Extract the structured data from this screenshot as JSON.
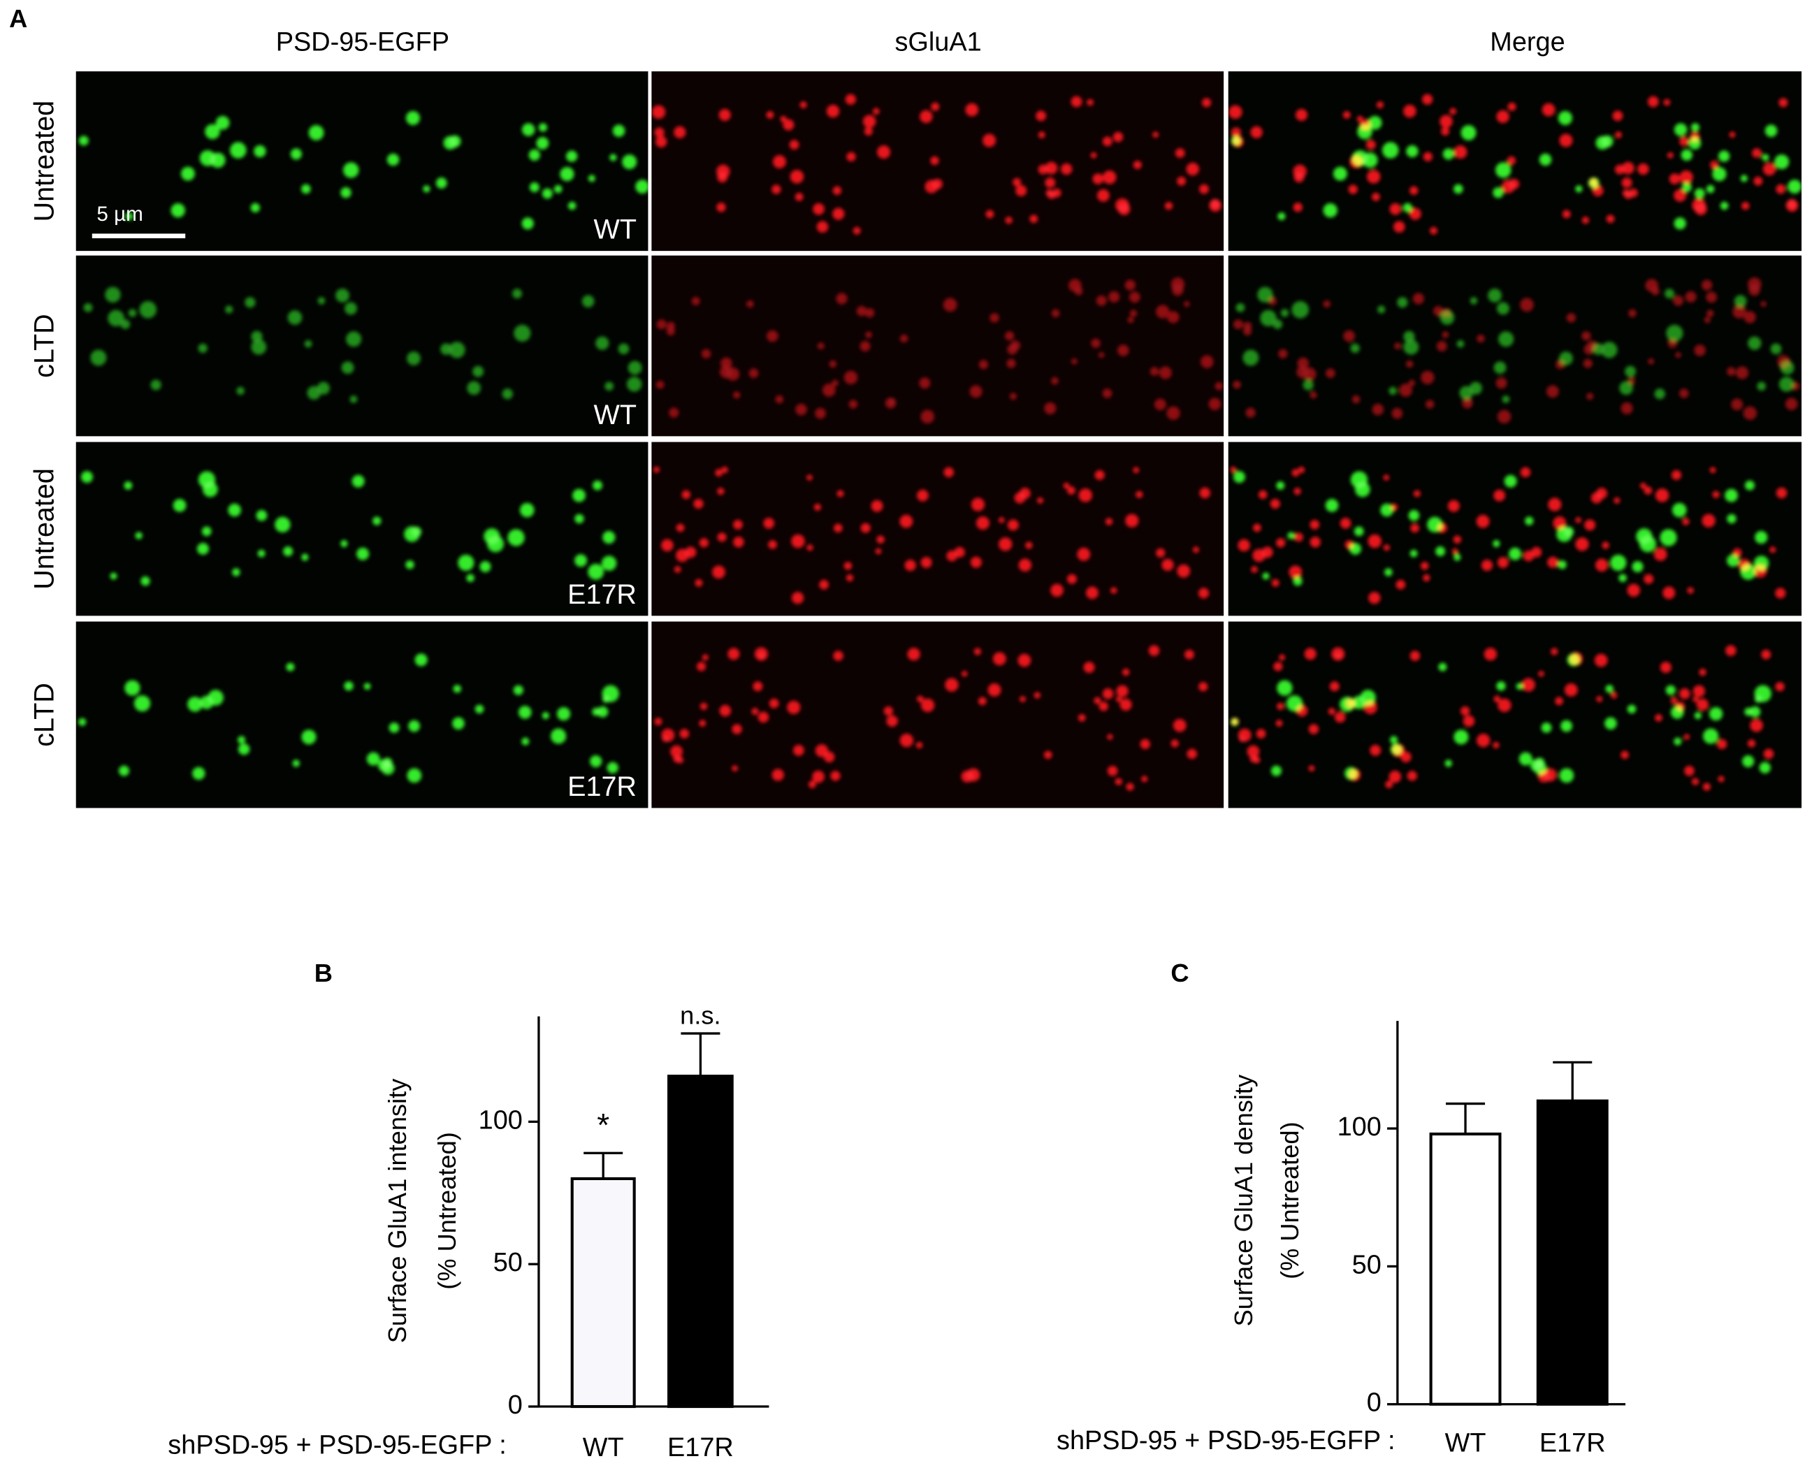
{
  "panel_a": {
    "label": "A",
    "columns": [
      "PSD-95-EGFP",
      "sGluA1",
      "Merge"
    ],
    "rows": [
      "Untreated",
      "cLTD",
      "Untreated",
      "cLTD"
    ],
    "conditions": [
      "WT",
      "WT",
      "E17R",
      "E17R"
    ],
    "scale_bar": "5 µm"
  },
  "chart_data": [
    {
      "type": "bar",
      "panel_label": "B",
      "ylabel": [
        "Surface GluA1 intensity",
        "(% Untreated)"
      ],
      "xlabel": "shPSD-95 + PSD-95-EGFP :",
      "categories": [
        "WT",
        "E17R"
      ],
      "values": [
        80,
        116
      ],
      "errors": [
        9,
        15
      ],
      "colors": [
        "#f8f8fc",
        "#000000"
      ],
      "annotations": [
        "*",
        "n.s."
      ],
      "ylim": [
        0,
        137
      ],
      "yticks": [
        0,
        50,
        100
      ]
    },
    {
      "type": "bar",
      "panel_label": "C",
      "ylabel": [
        "Surface GluA1 density",
        "(% Untreated)"
      ],
      "xlabel": "shPSD-95 + PSD-95-EGFP :",
      "categories": [
        "WT",
        "E17R"
      ],
      "values": [
        98,
        110
      ],
      "errors": [
        11,
        14
      ],
      "colors": [
        "#ffffff",
        "#000000"
      ],
      "ylim": [
        0,
        139
      ],
      "yticks": [
        0,
        50,
        100
      ]
    }
  ]
}
